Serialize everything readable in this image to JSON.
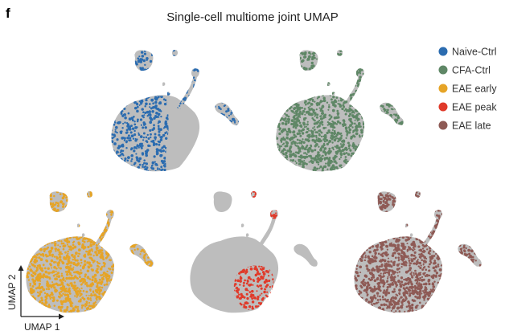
{
  "panel_letter": "f",
  "chart_data": {
    "type": "scatter",
    "title": "Single-cell multiome joint UMAP",
    "xlabel": "UMAP 1",
    "ylabel": "UMAP 2",
    "grid": false,
    "legend_position": "top-right",
    "background_color": "#bdbdbd",
    "series": [
      {
        "name": "Naive-Ctrl",
        "color": "#2b6cb0",
        "panel": 1,
        "pattern": "left-lobe"
      },
      {
        "name": "CFA-Ctrl",
        "color": "#5f8766",
        "panel": 2,
        "pattern": "near-full"
      },
      {
        "name": "EAE early",
        "color": "#e6a426",
        "panel": 3,
        "pattern": "near-full"
      },
      {
        "name": "EAE peak",
        "color": "#e03a2a",
        "panel": 4,
        "pattern": "lower-right"
      },
      {
        "name": "EAE late",
        "color": "#8e5a55",
        "panel": 5,
        "pattern": "near-full"
      }
    ]
  }
}
